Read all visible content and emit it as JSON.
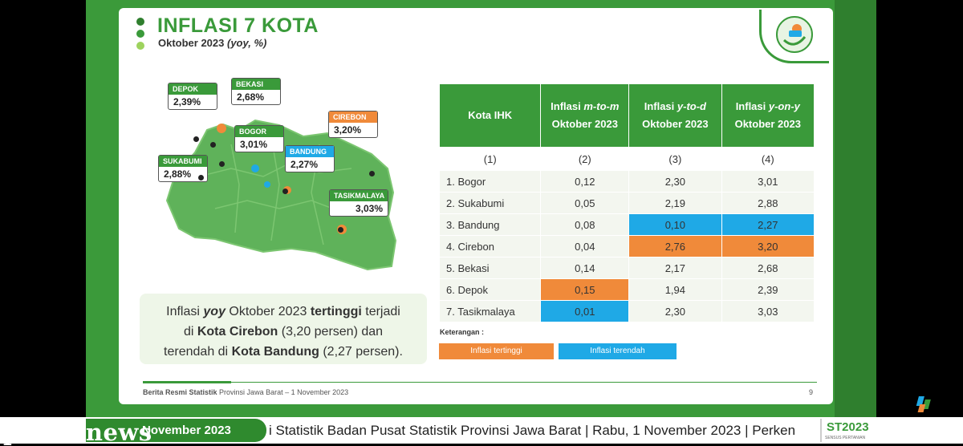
{
  "slide": {
    "title": "INFLASI 7 KOTA",
    "subtitle_main": "Oktober 2023 ",
    "subtitle_italic": "(yoy, %)"
  },
  "map": {
    "cities": [
      {
        "label": "DEPOK",
        "value": "2,39%"
      },
      {
        "label": "BEKASI",
        "value": "2,68%"
      },
      {
        "label": "BOGOR",
        "value": "3,01%"
      },
      {
        "label": "CIREBON",
        "value": "3,20%"
      },
      {
        "label": "SUKABUMI",
        "value": "2,88%"
      },
      {
        "label": "BANDUNG",
        "value": "2,27%"
      },
      {
        "label": "TASIKMALAYA",
        "value": "3,03%"
      }
    ]
  },
  "callout": {
    "p1": "Inflasi ",
    "p2": "yoy",
    "p3": " Oktober 2023 ",
    "p4": "tertinggi",
    "p5": " terjadi",
    "p6": "di ",
    "p7": "Kota Cirebon",
    "p8": " (3,20 persen) dan",
    "p9": "terendah di ",
    "p10": "Kota Bandung",
    "p11": " (2,27 persen)."
  },
  "table": {
    "headers": {
      "col1": "Kota IHK",
      "col2_a": "Inflasi ",
      "col2_b": "m-to-m",
      "col2_c": "Oktober 2023",
      "col3_a": "Inflasi ",
      "col3_b": "y-to-d",
      "col3_c": "Oktober 2023",
      "col4_a": "Inflasi ",
      "col4_b": "y-on-y",
      "col4_c": "Oktober 2023"
    },
    "index": [
      "(1)",
      "(2)",
      "(3)",
      "(4)"
    ],
    "rows": [
      [
        "1. Bogor",
        "0,12",
        "2,30",
        "3,01"
      ],
      [
        "2. Sukabumi",
        "0,05",
        "2,19",
        "2,88"
      ],
      [
        "3. Bandung",
        "0,08",
        "0,10",
        "2,27"
      ],
      [
        "4. Cirebon",
        "0,04",
        "2,76",
        "3,20"
      ],
      [
        "5. Bekasi",
        "0,14",
        "2,17",
        "2,68"
      ],
      [
        "6. Depok",
        "0,15",
        "1,94",
        "2,39"
      ],
      [
        "7. Tasikmalaya",
        "0,01",
        "2,30",
        "3,03"
      ]
    ]
  },
  "legend": {
    "title": "Keterangan :",
    "highest": "Inflasi tertinggi",
    "lowest": "Inflasi terendah"
  },
  "footer": {
    "bold": "Berita Resmi Statistik",
    "text": " Provinsi Jawa Barat – 1 November 2023",
    "page": "9"
  },
  "ticker": {
    "date": "November 2023",
    "text": "i Statistik Badan Pusat Statistik Provinsi Jawa Barat | Rabu, 1 November 2023 | Perken",
    "logo": "ST2023",
    "logo_sub": "SENSUS PERTANIAN"
  },
  "watermark": "pinus.news",
  "colors": {
    "green": "#3a9a3a",
    "orange": "#f08a3a",
    "blue": "#1fa9e6"
  }
}
